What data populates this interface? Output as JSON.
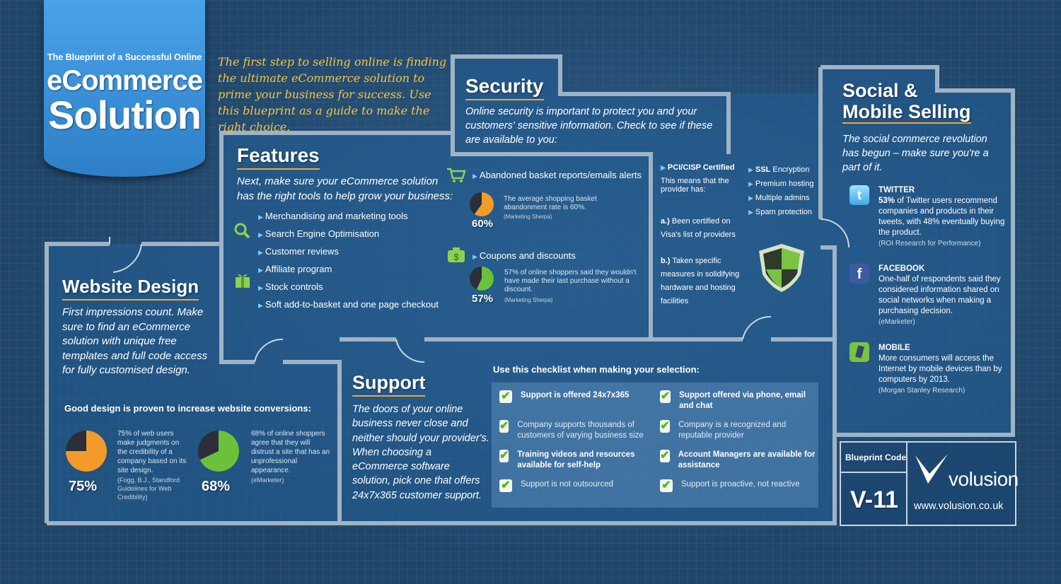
{
  "banner": {
    "subtitle": "The Blueprint of a Successful Online",
    "title1": "eCommerce",
    "title2": "Solution"
  },
  "intro": "The first step to selling online is finding the ultimate eCommerce solution to prime your business for success. Use this blueprint as a guide to make the right choice.",
  "features": {
    "title": "Features",
    "desc": "Next, make sure your eCommerce solution has the right tools to help grow your business:",
    "items": [
      "Merchandising and marketing tools",
      "Search Engine Optimisation",
      "Customer reviews",
      "Affiliate program",
      "Stock controls",
      "Soft add-to-basket and one page checkout"
    ],
    "basket": {
      "label": "Abandoned basket reports/emails alerts",
      "stat": "60%",
      "value": 60,
      "text": "The average shopping basket abandonment rate is 60%.",
      "source": "(Marketing Sherpa)"
    },
    "coupons": {
      "label": "Coupons and discounts",
      "stat": "57%",
      "value": 57,
      "text": "57% of online shoppers said they wouldn't have made their last purchase without a discount.",
      "source": "(Marketing Sherpa)"
    }
  },
  "security": {
    "title": "Security",
    "desc": "Online security is important to protect you and your customers' sensitive information. Check to see if these are available to you:",
    "pci": "PCI/CISP Certified",
    "pci_desc": "This means that the provider has:",
    "a_label": "a.)",
    "a_text": "Been certified on Visa's list of providers",
    "b_label": "b.)",
    "b_text": "Taken specific measures in solidifying hardware and hosting facilities",
    "list": [
      {
        "strong": "SSL",
        "rest": " Encryption"
      },
      {
        "strong": "",
        "rest": "Premium hosting"
      },
      {
        "strong": "",
        "rest": "Multiple admins"
      },
      {
        "strong": "",
        "rest": "Spam protection"
      }
    ]
  },
  "social": {
    "title1": "Social &",
    "title2": "Mobile Selling",
    "desc": "The social commerce revolution has begun – make sure you're a part of it.",
    "twitter": {
      "name": "TWITTER",
      "strong": "53%",
      "text": " of Twitter users recommend companies and products in their tweets, with 48% eventually buying the product.",
      "source": "(ROI Research for Performance)"
    },
    "facebook": {
      "name": "FACEBOOK",
      "text": "One-half of respondents said they considered information shared on social networks when making a purchasing decision.",
      "source": "(eMarketer)"
    },
    "mobile": {
      "name": "MOBILE",
      "text": "More consumers will access the Internet by mobile devices than by computers by 2013.",
      "source": "(Morgan Stanley Research)"
    }
  },
  "website": {
    "title": "Website Design",
    "desc": "First impressions count. Make sure to find an eCommerce solution with unique free templates and full code access for fully customised design.",
    "proven": "Good design is proven to increase website conversions:",
    "stat1": {
      "value": 75,
      "label": "75%",
      "text": "75% of web users make judgments on the credibility of a company based on its site design.",
      "source": "(Fogg, B.J., Standford Guidelines for Web Credibility)"
    },
    "stat2": {
      "value": 68,
      "label": "68%",
      "text": "68% of online shoppers agree that they will distrust a site that has an unprofessional appearance.",
      "source": "(eMarketer)"
    }
  },
  "support": {
    "title": "Support",
    "desc": "The doors of your online business never close and neither should your provider's. When choosing a eCommerce software solution, pick one that offers 24x7x365 customer support.",
    "checklist_title": "Use this checklist when making your selection:",
    "checks": [
      {
        "text": "Support is offered 24x7x365",
        "bold": true
      },
      {
        "text": "Support offered via phone, email and chat",
        "bold": true
      },
      {
        "text": "Company supports thousands of customers of varying business size",
        "bold": false
      },
      {
        "text": "Company is a recognized and reputable provider",
        "bold": false
      },
      {
        "text": "Training videos and resources available for self-help",
        "bold": true
      },
      {
        "text": "Account Managers are available for assistance",
        "bold": true
      },
      {
        "text": "Support is not outsourced",
        "bold": false
      },
      {
        "text": "Support is proactive, not reactive",
        "bold": false
      }
    ]
  },
  "footer": {
    "code_label": "Blueprint Code",
    "code": "V-11",
    "brand": "volusion",
    "url": "www.volusion.co.uk"
  },
  "colors": {
    "orange": "#f39a2b",
    "green": "#6cc13a",
    "banner": "#3d94dc"
  }
}
